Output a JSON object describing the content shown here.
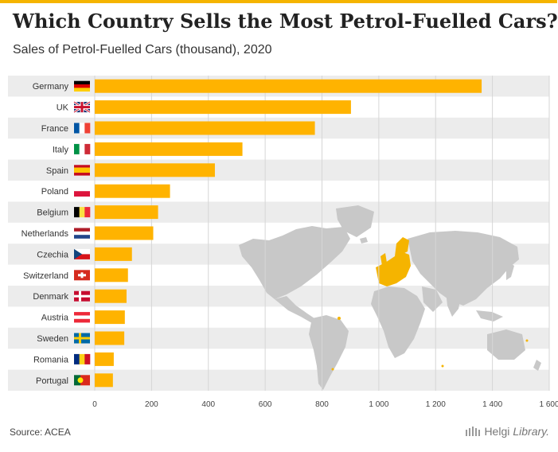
{
  "title": "Which Country Sells the Most Petrol-Fuelled Cars?",
  "subtitle": "Sales of Petrol-Fuelled Cars (thousand), 2020",
  "source": "Source: ACEA",
  "brand": {
    "name": "Helgi",
    "suffix": "Library."
  },
  "colors": {
    "accent": "#f5b400",
    "bar": "#ffb300",
    "band": "#ececec",
    "grid": "#d6d6d6",
    "map_land": "#c8c8c8",
    "map_highlight": "#f5b400"
  },
  "chart_data": {
    "type": "bar",
    "orientation": "horizontal",
    "categories": [
      "Germany",
      "UK",
      "France",
      "Italy",
      "Spain",
      "Poland",
      "Belgium",
      "Netherlands",
      "Czechia",
      "Switzerland",
      "Denmark",
      "Austria",
      "Sweden",
      "Romania",
      "Portugal"
    ],
    "flags": [
      "germany-flag-icon",
      "uk-flag-icon",
      "france-flag-icon",
      "italy-flag-icon",
      "spain-flag-icon",
      "poland-flag-icon",
      "belgium-flag-icon",
      "netherlands-flag-icon",
      "czechia-flag-icon",
      "switzerland-flag-icon",
      "denmark-flag-icon",
      "austria-flag-icon",
      "sweden-flag-icon",
      "romania-flag-icon",
      "portugal-flag-icon"
    ],
    "values": [
      1362,
      902,
      775,
      520,
      423,
      265,
      223,
      206,
      131,
      117,
      112,
      106,
      104,
      67,
      64
    ],
    "xlim": [
      0,
      1600
    ],
    "xticks": [
      0,
      200,
      400,
      600,
      800,
      1000,
      1200,
      1400,
      1600
    ],
    "xtick_labels": [
      "0",
      "200",
      "400",
      "600",
      "800",
      "1 000",
      "1 200",
      "1 400",
      "1 600"
    ],
    "xlabel": "",
    "ylabel": "",
    "grid": true,
    "background": "world map with European countries highlighted"
  }
}
